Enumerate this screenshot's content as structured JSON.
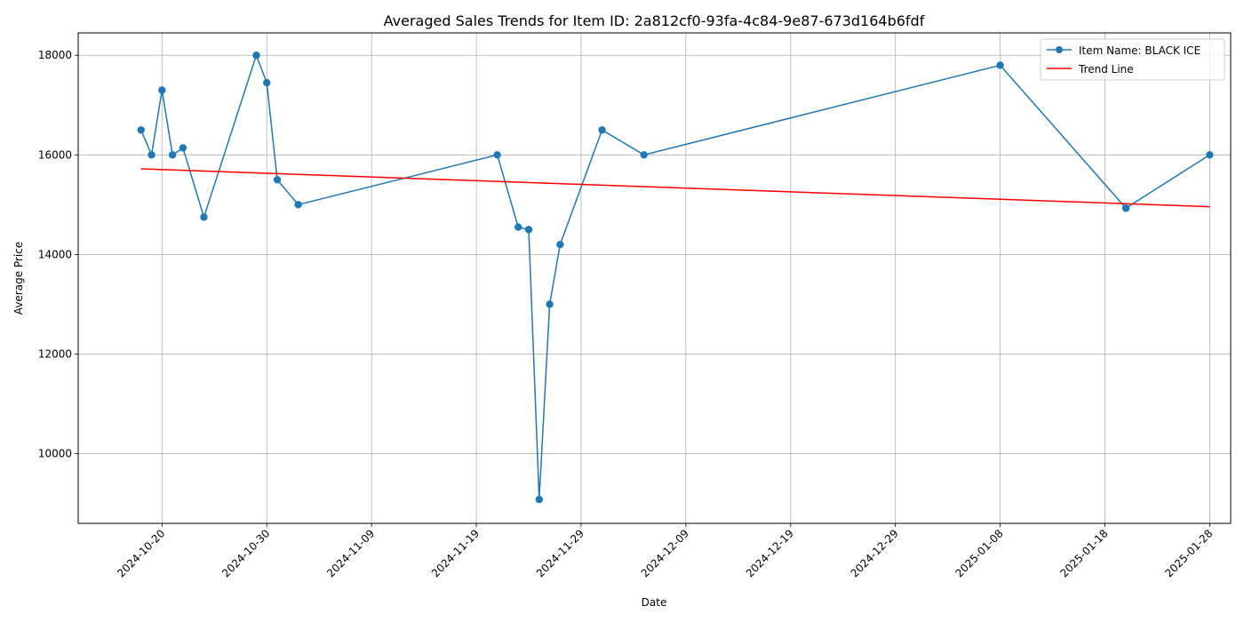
{
  "chart_data": {
    "type": "line",
    "title": "Averaged Sales Trends for Item ID: 2a812cf0-93fa-4c84-9e87-673d164b6fdf",
    "xlabel": "Date",
    "ylabel": "Average Price",
    "grid": true,
    "legend_position": "top-right",
    "xlim": [
      "2024-10-12",
      "2025-01-30"
    ],
    "ylim": [
      8600,
      18450
    ],
    "x_ticks": [
      "2024-10-20",
      "2024-10-30",
      "2024-11-09",
      "2024-11-19",
      "2024-11-29",
      "2024-12-09",
      "2024-12-19",
      "2024-12-29",
      "2025-01-08",
      "2025-01-18",
      "2025-01-28"
    ],
    "y_ticks": [
      10000,
      12000,
      14000,
      16000,
      18000
    ],
    "y_tick_labels": [
      "10000",
      "12000",
      "14000",
      "16000",
      "18000"
    ],
    "series": [
      {
        "name": "Item Name: BLACK ICE",
        "color": "#1f77b4",
        "marker": "circle",
        "points": [
          {
            "x": "2024-10-18",
            "y": 16500
          },
          {
            "x": "2024-10-19",
            "y": 16000
          },
          {
            "x": "2024-10-20",
            "y": 17300
          },
          {
            "x": "2024-10-21",
            "y": 16000
          },
          {
            "x": "2024-10-22",
            "y": 16140
          },
          {
            "x": "2024-10-24",
            "y": 14750
          },
          {
            "x": "2024-10-29",
            "y": 18000
          },
          {
            "x": "2024-10-30",
            "y": 17450
          },
          {
            "x": "2024-10-31",
            "y": 15500
          },
          {
            "x": "2024-11-02",
            "y": 15000
          },
          {
            "x": "2024-11-21",
            "y": 16000
          },
          {
            "x": "2024-11-23",
            "y": 14550
          },
          {
            "x": "2024-11-24",
            "y": 14500
          },
          {
            "x": "2024-11-25",
            "y": 9080
          },
          {
            "x": "2024-11-26",
            "y": 13000
          },
          {
            "x": "2024-11-27",
            "y": 14200
          },
          {
            "x": "2024-12-01",
            "y": 16500
          },
          {
            "x": "2024-12-05",
            "y": 16000
          },
          {
            "x": "2025-01-08",
            "y": 17800
          },
          {
            "x": "2025-01-20",
            "y": 14930
          },
          {
            "x": "2025-01-28",
            "y": 16000
          }
        ]
      },
      {
        "name": "Trend Line",
        "color": "#ff0000",
        "marker": "none",
        "points": [
          {
            "x": "2024-10-18",
            "y": 15720
          },
          {
            "x": "2025-01-28",
            "y": 14960
          }
        ]
      }
    ]
  }
}
